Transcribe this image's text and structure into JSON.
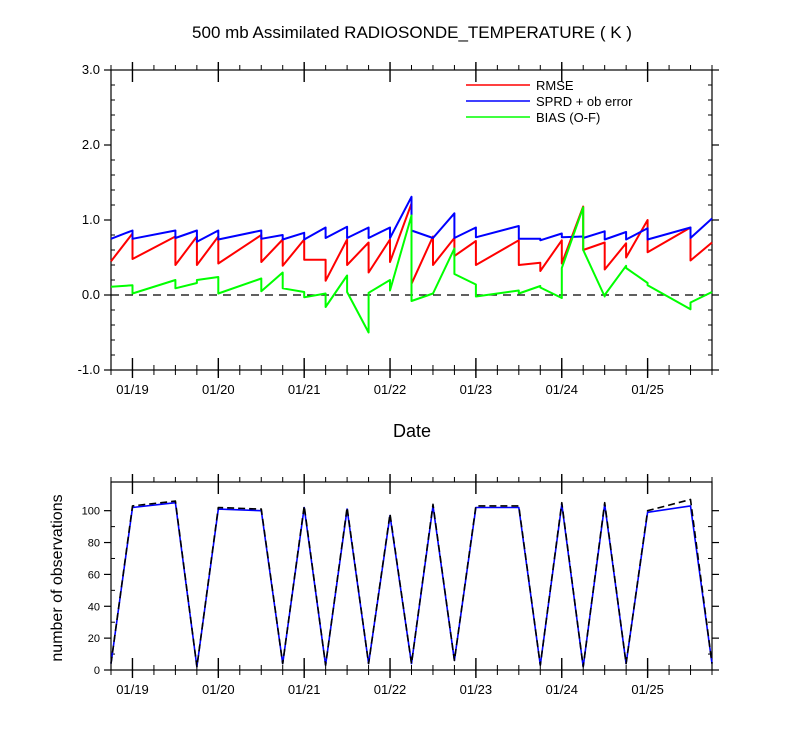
{
  "chart_data": [
    {
      "type": "line",
      "title": "500 mb Assimilated RADIOSONDE_TEMPERATURE ( K )",
      "xlabel": "Date",
      "ylabel": "",
      "ylim": [
        -1.0,
        3.0
      ],
      "yticks": [
        "3.0",
        "2.0",
        "1.0",
        "0.0",
        "-1.0"
      ],
      "xlim": [
        18.75,
        25.75
      ],
      "xticks": [
        {
          "x": 19,
          "label": "01/19"
        },
        {
          "x": 20,
          "label": "01/20"
        },
        {
          "x": 21,
          "label": "01/21"
        },
        {
          "x": 22,
          "label": "01/22"
        },
        {
          "x": 23,
          "label": "01/23"
        },
        {
          "x": 24,
          "label": "01/24"
        },
        {
          "x": 25,
          "label": "01/25"
        }
      ],
      "grid": false,
      "zero_line": {
        "y": 0,
        "style": "dashed"
      },
      "legend": "top-right",
      "series": [
        {
          "name": "RMSE",
          "color": "#ff0000",
          "points": [
            [
              18.75,
              0.45
            ],
            [
              19,
              0.82
            ],
            [
              19,
              0.48
            ],
            [
              19.5,
              0.78
            ],
            [
              19.5,
              0.4
            ],
            [
              19.75,
              0.78
            ],
            [
              19.75,
              0.4
            ],
            [
              20,
              0.78
            ],
            [
              20,
              0.42
            ],
            [
              20.5,
              0.8
            ],
            [
              20.5,
              0.44
            ],
            [
              20.75,
              0.74
            ],
            [
              20.75,
              0.39
            ],
            [
              21,
              0.74
            ],
            [
              21,
              0.47
            ],
            [
              21.25,
              0.47
            ],
            [
              21.25,
              0.19
            ],
            [
              21.5,
              0.74
            ],
            [
              21.5,
              0.4
            ],
            [
              21.75,
              0.7
            ],
            [
              21.75,
              0.3
            ],
            [
              22,
              0.74
            ],
            [
              22,
              0.44
            ],
            [
              22.25,
              1.22
            ],
            [
              22.25,
              0.15
            ],
            [
              22.5,
              0.78
            ],
            [
              22.5,
              0.4
            ],
            [
              22.75,
              0.76
            ],
            [
              22.75,
              0.52
            ],
            [
              23,
              0.72
            ],
            [
              23,
              0.4
            ],
            [
              23.5,
              0.73
            ],
            [
              23.5,
              0.4
            ],
            [
              23.75,
              0.43
            ],
            [
              23.75,
              0.32
            ],
            [
              24,
              0.73
            ],
            [
              24,
              0.42
            ],
            [
              24.25,
              1.18
            ],
            [
              24.25,
              0.6
            ],
            [
              24.5,
              0.7
            ],
            [
              24.5,
              0.34
            ],
            [
              24.75,
              0.69
            ],
            [
              24.75,
              0.5
            ],
            [
              25,
              1.0
            ],
            [
              25,
              0.57
            ],
            [
              25.5,
              0.9
            ],
            [
              25.5,
              0.46
            ],
            [
              25.75,
              0.7
            ]
          ]
        },
        {
          "name": "SPRD + ob error",
          "color": "#0000ff",
          "points": [
            [
              18.75,
              0.75
            ],
            [
              19,
              0.86
            ],
            [
              19,
              0.75
            ],
            [
              19.5,
              0.86
            ],
            [
              19.5,
              0.76
            ],
            [
              19.75,
              0.86
            ],
            [
              19.75,
              0.71
            ],
            [
              20,
              0.86
            ],
            [
              20,
              0.74
            ],
            [
              20.5,
              0.86
            ],
            [
              20.5,
              0.75
            ],
            [
              20.75,
              0.8
            ],
            [
              20.75,
              0.74
            ],
            [
              21,
              0.83
            ],
            [
              21,
              0.74
            ],
            [
              21.25,
              0.9
            ],
            [
              21.25,
              0.76
            ],
            [
              21.5,
              0.91
            ],
            [
              21.5,
              0.76
            ],
            [
              21.75,
              0.9
            ],
            [
              21.75,
              0.76
            ],
            [
              22,
              0.9
            ],
            [
              22,
              0.76
            ],
            [
              22.25,
              1.31
            ],
            [
              22.25,
              0.86
            ],
            [
              22.5,
              0.76
            ],
            [
              22.5,
              0.76
            ],
            [
              22.75,
              1.09
            ],
            [
              22.75,
              0.76
            ],
            [
              23,
              0.9
            ],
            [
              23,
              0.77
            ],
            [
              23.5,
              0.92
            ],
            [
              23.5,
              0.75
            ],
            [
              23.75,
              0.75
            ],
            [
              23.75,
              0.73
            ],
            [
              24,
              0.82
            ],
            [
              24,
              0.77
            ],
            [
              24.25,
              0.78
            ],
            [
              24.25,
              0.76
            ],
            [
              24.5,
              0.85
            ],
            [
              24.5,
              0.74
            ],
            [
              24.75,
              0.84
            ],
            [
              24.75,
              0.74
            ],
            [
              25,
              0.89
            ],
            [
              25,
              0.74
            ],
            [
              25.5,
              0.9
            ],
            [
              25.5,
              0.76
            ],
            [
              25.75,
              1.02
            ]
          ]
        },
        {
          "name": "BIAS (O-F)",
          "color": "#00ff00",
          "points": [
            [
              18.75,
              0.11
            ],
            [
              19,
              0.13
            ],
            [
              19,
              0.02
            ],
            [
              19.5,
              0.2
            ],
            [
              19.5,
              0.09
            ],
            [
              19.75,
              0.16
            ],
            [
              19.75,
              0.2
            ],
            [
              20,
              0.24
            ],
            [
              20,
              0.02
            ],
            [
              20.5,
              0.22
            ],
            [
              20.5,
              0.05
            ],
            [
              20.75,
              0.3
            ],
            [
              20.75,
              0.09
            ],
            [
              21,
              0.04
            ],
            [
              21,
              -0.03
            ],
            [
              21.25,
              0.02
            ],
            [
              21.25,
              -0.16
            ],
            [
              21.5,
              0.26
            ],
            [
              21.5,
              0.04
            ],
            [
              21.75,
              -0.5
            ],
            [
              21.75,
              0.03
            ],
            [
              22,
              0.2
            ],
            [
              22,
              0.06
            ],
            [
              22.25,
              1.06
            ],
            [
              22.25,
              -0.08
            ],
            [
              22.5,
              0.02
            ],
            [
              22.5,
              0.02
            ],
            [
              22.75,
              0.62
            ],
            [
              22.75,
              0.28
            ],
            [
              23,
              0.14
            ],
            [
              23,
              -0.02
            ],
            [
              23.5,
              0.06
            ],
            [
              23.5,
              0.02
            ],
            [
              23.75,
              0.12
            ],
            [
              23.75,
              0.1
            ],
            [
              24,
              -0.04
            ],
            [
              24,
              0.36
            ],
            [
              24.25,
              1.17
            ],
            [
              24.25,
              0.6
            ],
            [
              24.5,
              -0.02
            ],
            [
              24.5,
              0.0
            ],
            [
              24.75,
              0.39
            ],
            [
              24.75,
              0.36
            ],
            [
              25,
              0.16
            ],
            [
              25,
              0.13
            ],
            [
              25.5,
              -0.19
            ],
            [
              25.5,
              -0.1
            ],
            [
              25.75,
              0.04
            ]
          ]
        }
      ]
    },
    {
      "type": "line",
      "title": "",
      "xlabel": "",
      "ylabel": "number of observations",
      "ylim": [
        0,
        118
      ],
      "yticks": [
        "100",
        "80",
        "60",
        "40",
        "20",
        "0"
      ],
      "xlim": [
        18.75,
        25.75
      ],
      "xticks": [
        {
          "x": 19,
          "label": "01/19"
        },
        {
          "x": 20,
          "label": "01/20"
        },
        {
          "x": 21,
          "label": "01/21"
        },
        {
          "x": 22,
          "label": "01/22"
        },
        {
          "x": 23,
          "label": "01/23"
        },
        {
          "x": 24,
          "label": "01/24"
        },
        {
          "x": 25,
          "label": "01/25"
        }
      ],
      "grid": false,
      "legend": "none",
      "series": [
        {
          "color": "#0000ff",
          "style": "solid",
          "points": [
            [
              18.75,
              4
            ],
            [
              19,
              102
            ],
            [
              19.5,
              105
            ],
            [
              19.75,
              2
            ],
            [
              20,
              101
            ],
            [
              20.5,
              100
            ],
            [
              20.75,
              4
            ],
            [
              21,
              102
            ],
            [
              21.25,
              3
            ],
            [
              21.5,
              101
            ],
            [
              21.75,
              4
            ],
            [
              22,
              97
            ],
            [
              22.25,
              4
            ],
            [
              22.5,
              103
            ],
            [
              22.75,
              6
            ],
            [
              23,
              102
            ],
            [
              23.5,
              102
            ],
            [
              23.75,
              3
            ],
            [
              24,
              104
            ],
            [
              24.25,
              2
            ],
            [
              24.5,
              104
            ],
            [
              24.75,
              4
            ],
            [
              25,
              99
            ],
            [
              25.5,
              103
            ],
            [
              25.75,
              4
            ]
          ]
        },
        {
          "color": "#000000",
          "style": "dashed",
          "points": [
            [
              18.75,
              4
            ],
            [
              19,
              103
            ],
            [
              19.5,
              106
            ],
            [
              19.75,
              2
            ],
            [
              20,
              102
            ],
            [
              20.5,
              101
            ],
            [
              20.75,
              4
            ],
            [
              21,
              103
            ],
            [
              21.25,
              3
            ],
            [
              21.5,
              102
            ],
            [
              21.75,
              4
            ],
            [
              22,
              98
            ],
            [
              22.25,
              4
            ],
            [
              22.5,
              104
            ],
            [
              22.75,
              6
            ],
            [
              23,
              103
            ],
            [
              23.5,
              103
            ],
            [
              23.75,
              3
            ],
            [
              24,
              105
            ],
            [
              24.25,
              2
            ],
            [
              24.5,
              105
            ],
            [
              24.75,
              4
            ],
            [
              25,
              100
            ],
            [
              25.5,
              107
            ],
            [
              25.75,
              4
            ]
          ]
        }
      ]
    }
  ]
}
